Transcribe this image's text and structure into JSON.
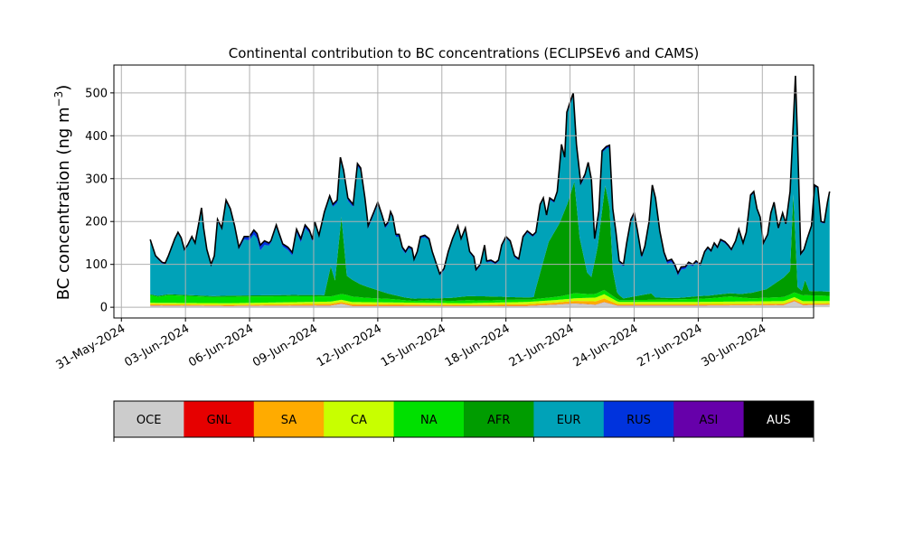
{
  "chart_data": {
    "type": "area",
    "title": "Continental contribution to BC concentrations (ECLIPSEv6 and CAMS)",
    "ylabel_main": "BC concentration (ng m",
    "ylabel_sup": "−3",
    "ylabel_close": ")",
    "xlabel": "",
    "ylim": [
      -25,
      565
    ],
    "xlim_days": [
      -0.35,
      32.4
    ],
    "grid": true,
    "x_dates": [
      "2024-06-01T08:00",
      "2024-07-02T00:00"
    ],
    "x_tick_labels": [
      "31-May-2024",
      "03-Jun-2024",
      "06-Jun-2024",
      "09-Jun-2024",
      "12-Jun-2024",
      "15-Jun-2024",
      "18-Jun-2024",
      "21-Jun-2024",
      "24-Jun-2024",
      "27-Jun-2024",
      "30-Jun-2024"
    ],
    "x_tick_days": [
      0,
      3,
      6,
      9,
      12,
      15,
      18,
      21,
      24,
      27,
      30
    ],
    "y_ticks": [
      0,
      100,
      200,
      300,
      400,
      500
    ],
    "y_tick_labels": [
      "0",
      "100",
      "200",
      "300",
      "400",
      "500"
    ],
    "total_outline": {
      "name": "total",
      "color": "#000000",
      "points": [
        [
          1.35,
          158
        ],
        [
          1.6,
          120
        ],
        [
          1.9,
          105
        ],
        [
          2.05,
          103
        ],
        [
          2.2,
          120
        ],
        [
          2.5,
          160
        ],
        [
          2.65,
          175
        ],
        [
          2.8,
          162
        ],
        [
          2.95,
          135
        ],
        [
          3.1,
          145
        ],
        [
          3.3,
          165
        ],
        [
          3.45,
          150
        ],
        [
          3.6,
          190
        ],
        [
          3.75,
          232
        ],
        [
          3.85,
          185
        ],
        [
          4.0,
          135
        ],
        [
          4.2,
          100
        ],
        [
          4.35,
          120
        ],
        [
          4.5,
          205
        ],
        [
          4.7,
          185
        ],
        [
          4.9,
          250
        ],
        [
          5.1,
          230
        ],
        [
          5.3,
          190
        ],
        [
          5.5,
          140
        ],
        [
          5.75,
          165
        ],
        [
          6.0,
          165
        ],
        [
          6.2,
          180
        ],
        [
          6.35,
          172
        ],
        [
          6.5,
          145
        ],
        [
          6.7,
          155
        ],
        [
          6.9,
          150
        ],
        [
          7.0,
          155
        ],
        [
          7.25,
          192
        ],
        [
          7.4,
          170
        ],
        [
          7.55,
          148
        ],
        [
          7.8,
          140
        ],
        [
          8.0,
          128
        ],
        [
          8.2,
          182
        ],
        [
          8.4,
          160
        ],
        [
          8.6,
          192
        ],
        [
          8.8,
          180
        ],
        [
          8.95,
          158
        ],
        [
          9.05,
          200
        ],
        [
          9.25,
          168
        ],
        [
          9.5,
          222
        ],
        [
          9.75,
          260
        ],
        [
          9.9,
          240
        ],
        [
          10.1,
          250
        ],
        [
          10.25,
          350
        ],
        [
          10.4,
          320
        ],
        [
          10.6,
          255
        ],
        [
          10.85,
          240
        ],
        [
          11.05,
          335
        ],
        [
          11.2,
          325
        ],
        [
          11.4,
          255
        ],
        [
          11.55,
          190
        ],
        [
          11.8,
          220
        ],
        [
          12.0,
          245
        ],
        [
          12.2,
          215
        ],
        [
          12.35,
          190
        ],
        [
          12.5,
          200
        ],
        [
          12.6,
          223
        ],
        [
          12.7,
          212
        ],
        [
          12.85,
          170
        ],
        [
          13.0,
          170
        ],
        [
          13.15,
          140
        ],
        [
          13.3,
          130
        ],
        [
          13.45,
          142
        ],
        [
          13.6,
          138
        ],
        [
          13.7,
          112
        ],
        [
          13.85,
          130
        ],
        [
          14.0,
          165
        ],
        [
          14.2,
          168
        ],
        [
          14.4,
          160
        ],
        [
          14.55,
          130
        ],
        [
          14.75,
          100
        ],
        [
          14.9,
          78
        ],
        [
          15.1,
          90
        ],
        [
          15.3,
          130
        ],
        [
          15.5,
          160
        ],
        [
          15.75,
          190
        ],
        [
          15.9,
          160
        ],
        [
          16.1,
          185
        ],
        [
          16.3,
          130
        ],
        [
          16.5,
          118
        ],
        [
          16.6,
          88
        ],
        [
          16.8,
          100
        ],
        [
          17.0,
          145
        ],
        [
          17.1,
          108
        ],
        [
          17.3,
          110
        ],
        [
          17.5,
          104
        ],
        [
          17.65,
          110
        ],
        [
          17.8,
          145
        ],
        [
          18.0,
          165
        ],
        [
          18.2,
          155
        ],
        [
          18.4,
          120
        ],
        [
          18.6,
          113
        ],
        [
          18.8,
          165
        ],
        [
          19.0,
          178
        ],
        [
          19.25,
          168
        ],
        [
          19.4,
          175
        ],
        [
          19.6,
          240
        ],
        [
          19.75,
          255
        ],
        [
          19.9,
          215
        ],
        [
          20.05,
          255
        ],
        [
          20.25,
          248
        ],
        [
          20.4,
          270
        ],
        [
          20.6,
          380
        ],
        [
          20.75,
          350
        ],
        [
          20.85,
          455
        ],
        [
          21.0,
          478
        ],
        [
          21.15,
          500
        ],
        [
          21.3,
          380
        ],
        [
          21.5,
          290
        ],
        [
          21.7,
          310
        ],
        [
          21.85,
          338
        ],
        [
          22.0,
          298
        ],
        [
          22.15,
          160
        ],
        [
          22.35,
          225
        ],
        [
          22.5,
          365
        ],
        [
          22.7,
          375
        ],
        [
          22.85,
          378
        ],
        [
          23.0,
          230
        ],
        [
          23.15,
          175
        ],
        [
          23.3,
          108
        ],
        [
          23.5,
          100
        ],
        [
          23.65,
          150
        ],
        [
          23.85,
          205
        ],
        [
          24.0,
          220
        ],
        [
          24.15,
          180
        ],
        [
          24.35,
          120
        ],
        [
          24.5,
          142
        ],
        [
          24.7,
          200
        ],
        [
          24.85,
          285
        ],
        [
          25.0,
          255
        ],
        [
          25.2,
          178
        ],
        [
          25.4,
          128
        ],
        [
          25.55,
          108
        ],
        [
          25.75,
          112
        ],
        [
          25.9,
          100
        ],
        [
          26.05,
          80
        ],
        [
          26.2,
          94
        ],
        [
          26.4,
          95
        ],
        [
          26.55,
          105
        ],
        [
          26.75,
          100
        ],
        [
          26.9,
          108
        ],
        [
          27.1,
          100
        ],
        [
          27.3,
          130
        ],
        [
          27.45,
          140
        ],
        [
          27.6,
          132
        ],
        [
          27.75,
          150
        ],
        [
          27.9,
          140
        ],
        [
          28.05,
          158
        ],
        [
          28.25,
          153
        ],
        [
          28.4,
          145
        ],
        [
          28.55,
          135
        ],
        [
          28.75,
          155
        ],
        [
          28.9,
          182
        ],
        [
          29.1,
          150
        ],
        [
          29.25,
          175
        ],
        [
          29.45,
          262
        ],
        [
          29.6,
          270
        ],
        [
          29.75,
          230
        ],
        [
          29.9,
          210
        ],
        [
          30.05,
          150
        ],
        [
          30.25,
          170
        ],
        [
          30.4,
          220
        ],
        [
          30.55,
          245
        ],
        [
          30.75,
          185
        ],
        [
          30.95,
          220
        ],
        [
          31.1,
          195
        ],
        [
          31.3,
          270
        ],
        [
          31.45,
          430
        ],
        [
          31.55,
          540
        ],
        [
          31.65,
          390
        ],
        [
          31.8,
          125
        ],
        [
          31.95,
          135
        ],
        [
          32.1,
          160
        ],
        [
          32.3,
          190
        ],
        [
          32.45,
          285
        ],
        [
          32.6,
          280
        ],
        [
          32.75,
          200
        ],
        [
          32.9,
          198
        ],
        [
          33.05,
          245
        ],
        [
          33.15,
          270
        ]
      ]
    },
    "series": [
      {
        "name": "OCE",
        "color": "#cccccc",
        "points": [
          [
            1.35,
            4
          ],
          [
            5,
            3
          ],
          [
            9.8,
            4
          ],
          [
            10.3,
            8
          ],
          [
            10.8,
            3
          ],
          [
            16,
            3
          ],
          [
            19,
            3
          ],
          [
            20.3,
            6
          ],
          [
            21.2,
            9
          ],
          [
            22.2,
            6
          ],
          [
            22.6,
            12
          ],
          [
            23.2,
            4
          ],
          [
            27,
            4
          ],
          [
            31,
            5
          ],
          [
            31.5,
            14
          ],
          [
            31.9,
            5
          ],
          [
            33.15,
            6
          ]
        ]
      },
      {
        "name": "GNL",
        "color": "#e60000",
        "points": [
          [
            1.35,
            0.5
          ],
          [
            33.15,
            0.5
          ]
        ]
      },
      {
        "name": "SA",
        "color": "#ffab00",
        "points": [
          [
            1.35,
            3
          ],
          [
            5,
            2
          ],
          [
            10.3,
            4
          ],
          [
            16,
            2
          ],
          [
            21,
            5
          ],
          [
            22.6,
            8
          ],
          [
            23.3,
            3
          ],
          [
            31,
            3
          ],
          [
            33.15,
            3
          ]
        ]
      },
      {
        "name": "CA",
        "color": "#c8ff00",
        "points": [
          [
            1.35,
            3
          ],
          [
            5,
            4
          ],
          [
            10.3,
            5
          ],
          [
            16,
            4
          ],
          [
            21.2,
            6
          ],
          [
            22.6,
            10
          ],
          [
            23.3,
            5
          ],
          [
            27,
            5
          ],
          [
            31.5,
            6
          ],
          [
            33.15,
            5
          ]
        ]
      },
      {
        "name": "NA",
        "color": "#00e000",
        "points": [
          [
            1.35,
            18
          ],
          [
            1.7,
            14
          ],
          [
            2.2,
            18
          ],
          [
            4.3,
            14
          ],
          [
            5,
            15
          ],
          [
            8,
            14
          ],
          [
            9.8,
            12
          ],
          [
            10.5,
            14
          ],
          [
            11.5,
            10
          ],
          [
            12.6,
            8
          ],
          [
            13.7,
            4
          ],
          [
            14.3,
            6
          ],
          [
            15.5,
            5
          ],
          [
            16.2,
            7
          ],
          [
            17,
            5
          ],
          [
            18,
            6
          ],
          [
            19.2,
            5
          ],
          [
            20.6,
            8
          ],
          [
            21.2,
            12
          ],
          [
            22,
            8
          ],
          [
            22.6,
            10
          ],
          [
            23.4,
            4
          ],
          [
            25,
            5
          ],
          [
            26,
            6
          ],
          [
            27.5,
            8
          ],
          [
            28.5,
            12
          ],
          [
            29.5,
            7
          ],
          [
            31.3,
            10
          ],
          [
            32,
            14
          ],
          [
            33.15,
            12
          ]
        ]
      },
      {
        "name": "AFR",
        "color": "#009c00",
        "points": [
          [
            1.35,
            2
          ],
          [
            9.5,
            3
          ],
          [
            9.8,
            70
          ],
          [
            10.0,
            35
          ],
          [
            10.3,
            180
          ],
          [
            10.55,
            45
          ],
          [
            11.2,
            30
          ],
          [
            12.5,
            12
          ],
          [
            13.3,
            6
          ],
          [
            14.5,
            4
          ],
          [
            16,
            9
          ],
          [
            17,
            10
          ],
          [
            18.2,
            6
          ],
          [
            19.3,
            5
          ],
          [
            19.4,
            25
          ],
          [
            20.0,
            130
          ],
          [
            20.5,
            170
          ],
          [
            20.9,
            215
          ],
          [
            21.2,
            260
          ],
          [
            21.45,
            130
          ],
          [
            21.8,
            50
          ],
          [
            22.0,
            40
          ],
          [
            22.3,
            110
          ],
          [
            22.65,
            245
          ],
          [
            22.85,
            200
          ],
          [
            23.0,
            60
          ],
          [
            23.2,
            15
          ],
          [
            23.5,
            4
          ],
          [
            24.8,
            15
          ],
          [
            25,
            5
          ],
          [
            26,
            3
          ],
          [
            27,
            6
          ],
          [
            29,
            8
          ],
          [
            30.2,
            20
          ],
          [
            31.3,
            55
          ],
          [
            31.45,
            230
          ],
          [
            31.65,
            15
          ],
          [
            31.85,
            10
          ],
          [
            32.0,
            35
          ],
          [
            32.2,
            10
          ],
          [
            33.15,
            10
          ]
        ]
      },
      {
        "name": "RUS",
        "color": "#0033dd",
        "points": [
          [
            1.35,
            2
          ],
          [
            5.5,
            4
          ],
          [
            6.5,
            12
          ],
          [
            7.0,
            4
          ],
          [
            8.5,
            8
          ],
          [
            9.1,
            3
          ],
          [
            10.3,
            6
          ],
          [
            15.5,
            3
          ],
          [
            20,
            3
          ],
          [
            21,
            5
          ],
          [
            22.6,
            4
          ],
          [
            26,
            6
          ],
          [
            27,
            3
          ],
          [
            31.5,
            3
          ],
          [
            33.15,
            2
          ]
        ]
      },
      {
        "name": "ASI",
        "color": "#6600aa",
        "points": [
          [
            1.35,
            0.8
          ],
          [
            33.15,
            0.8
          ]
        ]
      }
    ],
    "legend": [
      "OCE",
      "GNL",
      "SA",
      "CA",
      "NA",
      "AFR",
      "EUR",
      "RUS",
      "ASI",
      "AUS"
    ],
    "legend_colors": [
      "#cccccc",
      "#e60000",
      "#ffab00",
      "#c8ff00",
      "#00e000",
      "#009c00",
      "#00a2b8",
      "#0033dd",
      "#6600aa",
      "#000000"
    ],
    "legend_text_colors": [
      "#000000",
      "#000000",
      "#000000",
      "#000000",
      "#000000",
      "#000000",
      "#000000",
      "#000000",
      "#000000",
      "#ffffff"
    ],
    "eur_color": "#00a2b8",
    "legend_placement": "below"
  }
}
